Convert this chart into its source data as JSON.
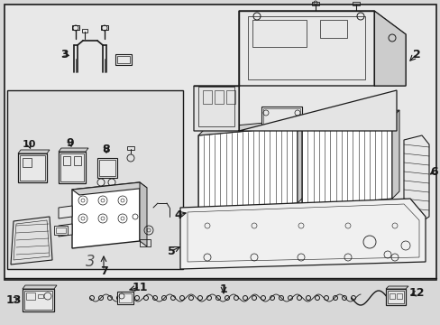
{
  "bg_color": "#d8d8d8",
  "line_color": "#1a1a1a",
  "white": "#ffffff",
  "light_gray": "#e8e8e8",
  "fig_width": 4.89,
  "fig_height": 3.6,
  "dpi": 100,
  "label_fs": 7.5,
  "num_fs": 9
}
